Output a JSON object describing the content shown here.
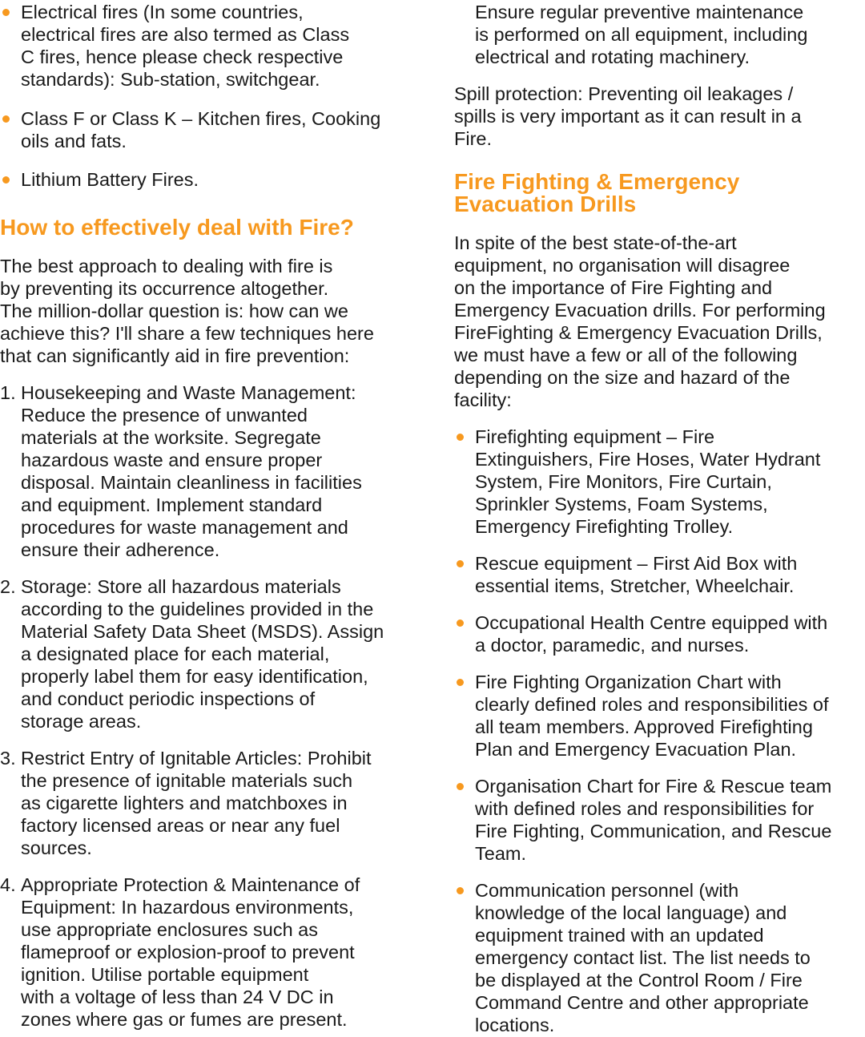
{
  "accent_color": "#F7991F",
  "left": {
    "bullets": [
      "Electrical fires (In some countries,\nelectrical fires are also termed as Class\nC fires, hence please check respective\nstandards): Sub-station, switchgear.",
      "Class F or Class K – Kitchen fires, Cooking\noils and fats.",
      "Lithium Battery Fires."
    ],
    "heading": "How to effectively deal with Fire?",
    "intro": "The best approach to dealing with fire is\nby preventing its occurrence altogether.\nThe million-dollar question is: how can we\nachieve this? I'll share a few techniques here\nthat can significantly aid in fire prevention:",
    "numbered": [
      {
        "num": "1.",
        "text": "Housekeeping and Waste Management:\nReduce the presence of unwanted\nmaterials at the worksite. Segregate\nhazardous waste and ensure proper\ndisposal. Maintain cleanliness in facilities\nand equipment. Implement standard\nprocedures for waste management and\nensure their adherence."
      },
      {
        "num": "2.",
        "text": "Storage: Store all hazardous materials\naccording to the guidelines provided in the\nMaterial Safety Data Sheet (MSDS). Assign\na designated place for each material,\nproperly label them for easy identification,\nand conduct periodic inspections of\nstorage areas."
      },
      {
        "num": "3.",
        "text": "Restrict Entry of Ignitable Articles: Prohibit\nthe presence of ignitable materials such\nas cigarette lighters and matchboxes in\nfactory licensed areas or near any fuel\nsources."
      },
      {
        "num": "4.",
        "text": "Appropriate Protection & Maintenance of\nEquipment: In hazardous environments,\nuse appropriate enclosures such as\nflameproof or explosion-proof to prevent\nignition. Utilise portable equipment\nwith a voltage of less than 24 V DC in\nzones where gas or fumes are present."
      }
    ]
  },
  "right": {
    "continuation": "Ensure regular preventive maintenance\nis performed on all equipment, including\nelectrical and rotating machinery.",
    "spill": "Spill protection: Preventing oil leakages /\nspills is very important as it can result in a\nFire.",
    "heading": "Fire Fighting & Emergency\nEvacuation Drills",
    "intro": "In spite of the best state-of-the-art\nequipment, no organisation will disagree\non the importance of Fire Fighting and\nEmergency Evacuation drills. For performing\nFireFighting & Emergency Evacuation Drills,\nwe must have a few or all of the following\ndepending on the size and hazard of the\nfacility:",
    "bullets": [
      "Firefighting equipment – Fire\nExtinguishers, Fire Hoses, Water Hydrant\nSystem, Fire Monitors, Fire Curtain,\nSprinkler Systems, Foam Systems,\nEmergency Firefighting Trolley.",
      "Rescue equipment – First Aid Box with\nessential items, Stretcher, Wheelchair.",
      "Occupational Health Centre equipped with\na doctor, paramedic, and nurses.",
      "Fire Fighting Organization Chart with\nclearly defined roles and responsibilities of\nall team members. Approved Firefighting\nPlan and Emergency Evacuation Plan.",
      "Organisation Chart for Fire & Rescue team\nwith defined roles and responsibilities for\nFire Fighting, Communication, and Rescue\nTeam.",
      "Communication personnel (with\nknowledge of the local language) and\nequipment trained with an updated\nemergency contact list. The list needs to\nbe displayed at the Control Room / Fire\nCommand Centre and other appropriate\nlocations."
    ]
  }
}
